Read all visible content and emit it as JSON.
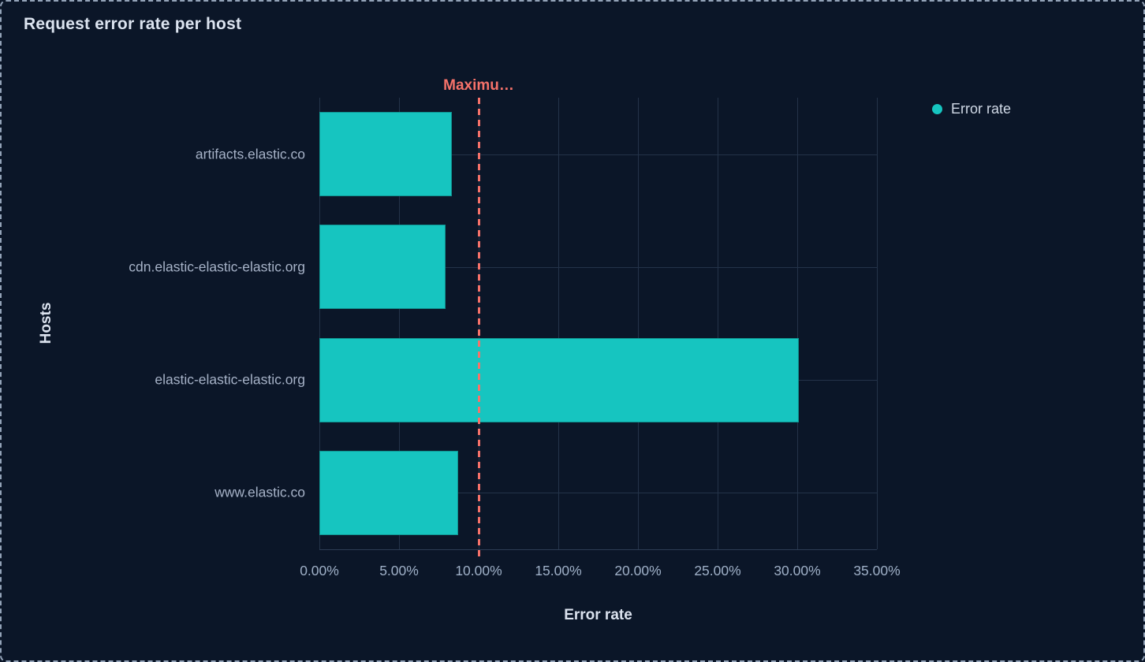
{
  "panel": {
    "title": "Request error rate per host"
  },
  "legend": {
    "items": [
      {
        "label": "Error rate",
        "color": "#16c5c0"
      }
    ]
  },
  "chart_data": {
    "type": "bar",
    "orientation": "horizontal",
    "title": "Request error rate per host",
    "xlabel": "Error rate",
    "ylabel": "Hosts",
    "categories": [
      "artifacts.elastic.co",
      "cdn.elastic-elastic-elastic.org",
      "elastic-elastic-elastic.org",
      "www.elastic.co"
    ],
    "series": [
      {
        "name": "Error rate",
        "color": "#16c5c0",
        "values": [
          8.3,
          7.9,
          30.1,
          8.7
        ],
        "unit": "%"
      }
    ],
    "xlim": [
      0,
      35
    ],
    "x_tick_values": [
      0,
      5,
      10,
      15,
      20,
      25,
      30,
      35
    ],
    "x_tick_labels": [
      "0.00%",
      "5.00%",
      "10.00%",
      "15.00%",
      "20.00%",
      "25.00%",
      "30.00%",
      "35.00%"
    ],
    "grid": true,
    "legend_position": "top-right",
    "annotation": {
      "label": "Maximu…",
      "value": 10,
      "color": "#f6726a",
      "style": "dashed"
    }
  },
  "colors": {
    "background": "#0b1628",
    "panel_border": "#93a3b8",
    "grid": "#243349",
    "axis_line": "#2c3c55",
    "bar": "#16c5c0",
    "annotation": "#f6726a",
    "tick_label": "#9fb0c7",
    "category_label": "#a6b2c7",
    "axis_title": "#dbe2ee",
    "title": "#dce4f0"
  }
}
